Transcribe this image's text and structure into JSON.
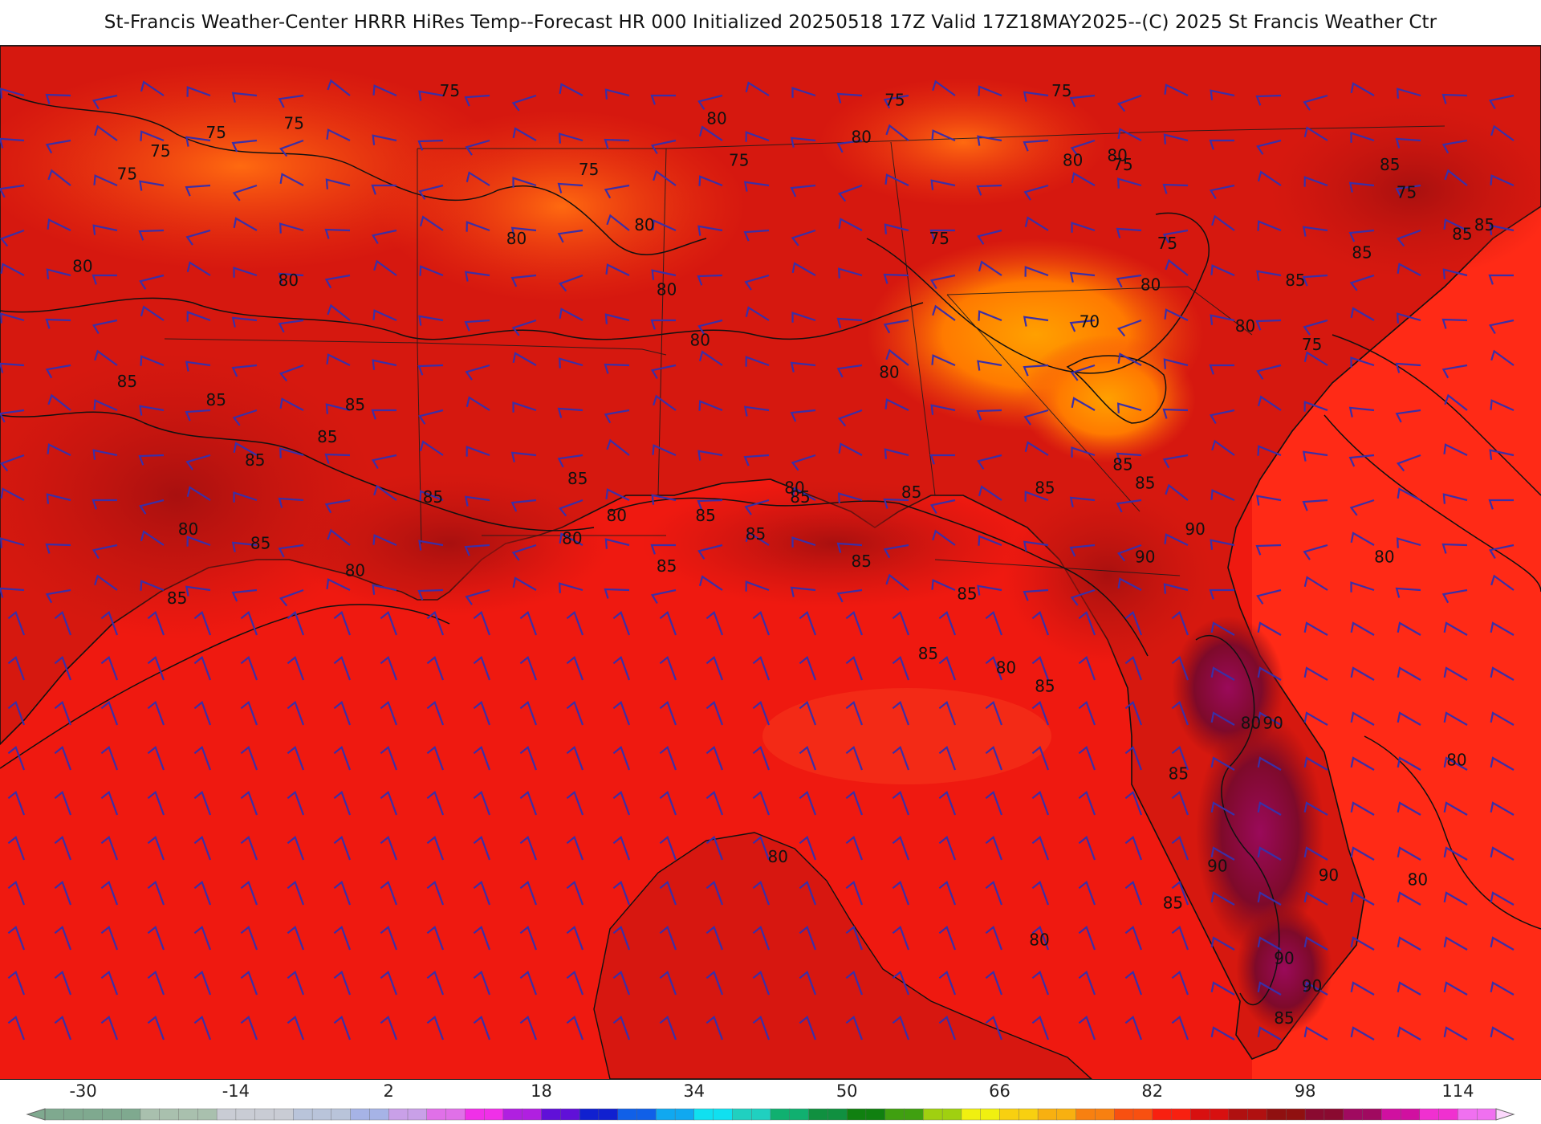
{
  "title": "St-Francis Weather-Center HRRR HiRes Temp--Forecast HR 000 Initialized 20250518 17Z Valid 17Z18MAY2025--(C) 2025 St Francis Weather Ctr",
  "colorbar": {
    "ticks": [
      "-30",
      "-14",
      "2",
      "18",
      "34",
      "50",
      "66",
      "82",
      "98",
      "114"
    ],
    "min": -34,
    "max": 118
  },
  "contour_labels": [
    {
      "id": "lbl-75-a",
      "text": "75",
      "lon": -95.2,
      "lat": 36.4
    },
    {
      "id": "lbl-75-b",
      "text": "75",
      "lon": -96.6,
      "lat": 36.2
    },
    {
      "id": "lbl-75-c",
      "text": "75",
      "lon": -97.6,
      "lat": 35.8
    },
    {
      "id": "lbl-75-d",
      "text": "75",
      "lon": -98.2,
      "lat": 35.3
    },
    {
      "id": "lbl-75-e",
      "text": "75",
      "lon": -92.4,
      "lat": 37.1
    },
    {
      "id": "lbl-75-f",
      "text": "75",
      "lon": -89.9,
      "lat": 35.4
    },
    {
      "id": "lbl-75-g",
      "text": "75",
      "lon": -87.2,
      "lat": 35.6
    },
    {
      "id": "lbl-75-h",
      "text": "75",
      "lon": -84.4,
      "lat": 36.9
    },
    {
      "id": "lbl-75-i",
      "text": "75",
      "lon": -81.4,
      "lat": 37.1
    },
    {
      "id": "lbl-75-j",
      "text": "75",
      "lon": -80.3,
      "lat": 35.5
    },
    {
      "id": "lbl-75-k",
      "text": "75",
      "lon": -83.6,
      "lat": 33.9
    },
    {
      "id": "lbl-75-l",
      "text": "75",
      "lon": -79.5,
      "lat": 33.8
    },
    {
      "id": "lbl-75-m",
      "text": "75",
      "lon": -75.2,
      "lat": 34.9
    },
    {
      "id": "lbl-75-n",
      "text": "75",
      "lon": -76.9,
      "lat": 31.6
    },
    {
      "id": "lbl-70",
      "text": "70",
      "lon": -80.9,
      "lat": 32.1
    },
    {
      "id": "lbl-80-a",
      "text": "80",
      "lon": -87.6,
      "lat": 36.5
    },
    {
      "id": "lbl-80-b",
      "text": "80",
      "lon": -85.0,
      "lat": 36.1
    },
    {
      "id": "lbl-80-c",
      "text": "80",
      "lon": -81.2,
      "lat": 35.6
    },
    {
      "id": "lbl-80-d",
      "text": "80",
      "lon": -80.4,
      "lat": 35.7
    },
    {
      "id": "lbl-80-e",
      "text": "80",
      "lon": -88.9,
      "lat": 34.2
    },
    {
      "id": "lbl-80-f",
      "text": "80",
      "lon": -91.2,
      "lat": 33.9
    },
    {
      "id": "lbl-80-g",
      "text": "80",
      "lon": -95.3,
      "lat": 33.0
    },
    {
      "id": "lbl-80-h",
      "text": "80",
      "lon": -99.0,
      "lat": 33.3
    },
    {
      "id": "lbl-80-i",
      "text": "80",
      "lon": -88.5,
      "lat": 32.8
    },
    {
      "id": "lbl-80-j",
      "text": "80",
      "lon": -87.9,
      "lat": 31.7
    },
    {
      "id": "lbl-80-k",
      "text": "80",
      "lon": -84.5,
      "lat": 31.0
    },
    {
      "id": "lbl-80-l",
      "text": "80",
      "lon": -79.8,
      "lat": 32.9
    },
    {
      "id": "lbl-80-m",
      "text": "80",
      "lon": -78.1,
      "lat": 32.0
    },
    {
      "id": "lbl-80-n",
      "text": "80",
      "lon": -89.4,
      "lat": 27.9
    },
    {
      "id": "lbl-80-o",
      "text": "80",
      "lon": -86.2,
      "lat": 28.5
    },
    {
      "id": "lbl-80-p",
      "text": "80",
      "lon": -97.1,
      "lat": 27.6
    },
    {
      "id": "lbl-80-q",
      "text": "80",
      "lon": -94.1,
      "lat": 26.7
    },
    {
      "id": "lbl-80-r",
      "text": "80",
      "lon": -90.2,
      "lat": 27.4
    },
    {
      "id": "lbl-80-s",
      "text": "80",
      "lon": -82.4,
      "lat": 24.6
    },
    {
      "id": "lbl-80-t",
      "text": "80",
      "lon": -75.6,
      "lat": 27.0
    },
    {
      "id": "lbl-80-u",
      "text": "80",
      "lon": -78.0,
      "lat": 23.4
    },
    {
      "id": "lbl-80-v",
      "text": "80",
      "lon": -86.5,
      "lat": 20.5
    },
    {
      "id": "lbl-80-w",
      "text": "80",
      "lon": -81.8,
      "lat": 18.7
    },
    {
      "id": "lbl-80-x",
      "text": "80",
      "lon": -74.3,
      "lat": 22.6
    },
    {
      "id": "lbl-80-y",
      "text": "80",
      "lon": -75.0,
      "lat": 20.0
    },
    {
      "id": "lbl-85-a",
      "text": "85",
      "lon": -98.2,
      "lat": 30.8
    },
    {
      "id": "lbl-85-b",
      "text": "85",
      "lon": -96.6,
      "lat": 30.4
    },
    {
      "id": "lbl-85-c",
      "text": "85",
      "lon": -94.1,
      "lat": 30.3
    },
    {
      "id": "lbl-85-d",
      "text": "85",
      "lon": -94.6,
      "lat": 29.6
    },
    {
      "id": "lbl-85-e",
      "text": "85",
      "lon": -95.9,
      "lat": 29.1
    },
    {
      "id": "lbl-85-f",
      "text": "85",
      "lon": -92.7,
      "lat": 28.3
    },
    {
      "id": "lbl-85-g",
      "text": "85",
      "lon": -95.8,
      "lat": 27.3
    },
    {
      "id": "lbl-85-h",
      "text": "85",
      "lon": -97.3,
      "lat": 26.1
    },
    {
      "id": "lbl-85-i",
      "text": "85",
      "lon": -90.1,
      "lat": 28.7
    },
    {
      "id": "lbl-85-j",
      "text": "85",
      "lon": -87.8,
      "lat": 27.9
    },
    {
      "id": "lbl-85-k",
      "text": "85",
      "lon": -86.1,
      "lat": 28.3
    },
    {
      "id": "lbl-85-l",
      "text": "85",
      "lon": -84.1,
      "lat": 28.4
    },
    {
      "id": "lbl-85-m",
      "text": "85",
      "lon": -81.7,
      "lat": 28.5
    },
    {
      "id": "lbl-85-n",
      "text": "85",
      "lon": -80.3,
      "lat": 29.0
    },
    {
      "id": "lbl-85-o",
      "text": "85",
      "lon": -86.9,
      "lat": 27.5
    },
    {
      "id": "lbl-85-p",
      "text": "85",
      "lon": -88.5,
      "lat": 26.8
    },
    {
      "id": "lbl-85-q",
      "text": "85",
      "lon": -85.0,
      "lat": 26.9
    },
    {
      "id": "lbl-85-r",
      "text": "85",
      "lon": -83.1,
      "lat": 26.2
    },
    {
      "id": "lbl-85-s",
      "text": "85",
      "lon": -83.8,
      "lat": 24.9
    },
    {
      "id": "lbl-85-t",
      "text": "85",
      "lon": -81.7,
      "lat": 24.2
    },
    {
      "id": "lbl-85-u",
      "text": "85",
      "lon": -75.5,
      "lat": 35.5
    },
    {
      "id": "lbl-85-v",
      "text": "85",
      "lon": -73.8,
      "lat": 34.2
    },
    {
      "id": "lbl-85-w",
      "text": "85",
      "lon": -76.0,
      "lat": 33.6
    },
    {
      "id": "lbl-85-x",
      "text": "85",
      "lon": -77.2,
      "lat": 33.0
    },
    {
      "id": "lbl-85-y",
      "text": "85",
      "lon": -74.2,
      "lat": 34.0
    },
    {
      "id": "lbl-85-z",
      "text": "85",
      "lon": -79.9,
      "lat": 28.6
    },
    {
      "id": "lbl-85-aa",
      "text": "85",
      "lon": -79.3,
      "lat": 22.3
    },
    {
      "id": "lbl-85-ab",
      "text": "85",
      "lon": -79.4,
      "lat": 19.5
    },
    {
      "id": "lbl-85-ac",
      "text": "85",
      "lon": -77.4,
      "lat": 17.0
    },
    {
      "id": "lbl-90-a",
      "text": "90",
      "lon": -79.0,
      "lat": 27.6
    },
    {
      "id": "lbl-90-b",
      "text": "90",
      "lon": -79.9,
      "lat": 27.0
    },
    {
      "id": "lbl-90-c",
      "text": "90",
      "lon": -77.6,
      "lat": 23.4
    },
    {
      "id": "lbl-90-d",
      "text": "90",
      "lon": -78.6,
      "lat": 20.3
    },
    {
      "id": "lbl-90-e",
      "text": "90",
      "lon": -76.6,
      "lat": 20.1
    },
    {
      "id": "lbl-90-f",
      "text": "90",
      "lon": -77.4,
      "lat": 18.3
    },
    {
      "id": "lbl-90-g",
      "text": "90",
      "lon": -76.9,
      "lat": 17.7
    }
  ]
}
